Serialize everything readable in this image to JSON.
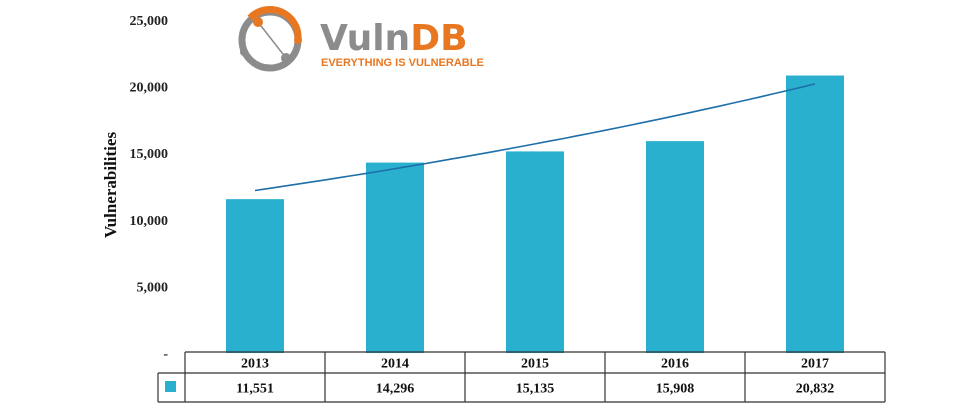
{
  "logo": {
    "text_part1": "Vuln",
    "text_part2": "DB",
    "tagline": "EVERYTHING IS VULNERABLE"
  },
  "colors": {
    "bar": "#2ab0cf",
    "trend": "#1e6fa8",
    "logo_gray": "#8c8c8c",
    "logo_orange": "#e87722"
  },
  "chart_data": {
    "type": "bar",
    "title": "",
    "xlabel": "",
    "ylabel": "Vulnerabilities",
    "categories": [
      "2013",
      "2014",
      "2015",
      "2016",
      "2017"
    ],
    "values": [
      11551,
      14296,
      15135,
      15908,
      20832
    ],
    "value_labels": [
      "11,551",
      "14,296",
      "15,135",
      "15,908",
      "20,832"
    ],
    "ylim": [
      0,
      25000
    ],
    "yticks": [
      {
        "value": 0,
        "label": "-"
      },
      {
        "value": 5000,
        "label": "5,000"
      },
      {
        "value": 10000,
        "label": "10,000"
      },
      {
        "value": 15000,
        "label": "15,000"
      },
      {
        "value": 20000,
        "label": "20,000"
      },
      {
        "value": 25000,
        "label": "25,000"
      }
    ],
    "trendline": {
      "type": "exponential",
      "start_value": 12200,
      "end_value": 20200
    },
    "grid": false,
    "legend": "data-table"
  }
}
